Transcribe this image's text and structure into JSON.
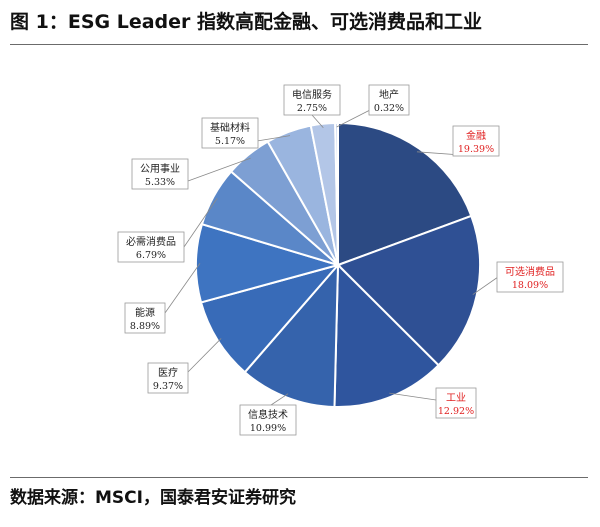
{
  "title": "图 1：ESG Leader 指数高配金融、可选消费品和工业",
  "source": "数据来源：MSCI，国泰君安证券研究",
  "chart_data": {
    "type": "pie",
    "start_angle_deg": 0,
    "direction": "clockwise",
    "slices": [
      {
        "name": "金融",
        "value": 19.39,
        "label": "19.39%",
        "color": "#2c4a83",
        "highlight": true
      },
      {
        "name": "可选消费品",
        "value": 18.09,
        "label": "18.09%",
        "color": "#2f5094",
        "highlight": true
      },
      {
        "name": "工业",
        "value": 12.92,
        "label": "12.92%",
        "color": "#2f559e",
        "highlight": true
      },
      {
        "name": "信息技术",
        "value": 10.99,
        "label": "10.99%",
        "color": "#3563ac",
        "highlight": false
      },
      {
        "name": "医疗",
        "value": 9.37,
        "label": "9.37%",
        "color": "#386bb8",
        "highlight": false
      },
      {
        "name": "能源",
        "value": 8.89,
        "label": "8.89%",
        "color": "#3e74c1",
        "highlight": false
      },
      {
        "name": "必需消费品",
        "value": 6.79,
        "label": "6.79%",
        "color": "#5a87c8",
        "highlight": false
      },
      {
        "name": "公用事业",
        "value": 5.33,
        "label": "5.33%",
        "color": "#7d9fd3",
        "highlight": false
      },
      {
        "name": "基础材料",
        "value": 5.17,
        "label": "5.17%",
        "color": "#9ab5df",
        "highlight": false
      },
      {
        "name": "电信服务",
        "value": 2.75,
        "label": "2.75%",
        "color": "#b3c6e7",
        "highlight": false
      },
      {
        "name": "地产",
        "value": 0.32,
        "label": "0.32%",
        "color": "#c9d6ee",
        "highlight": false
      }
    ],
    "label_color": "#222222",
    "highlight_color": "#e02020"
  }
}
